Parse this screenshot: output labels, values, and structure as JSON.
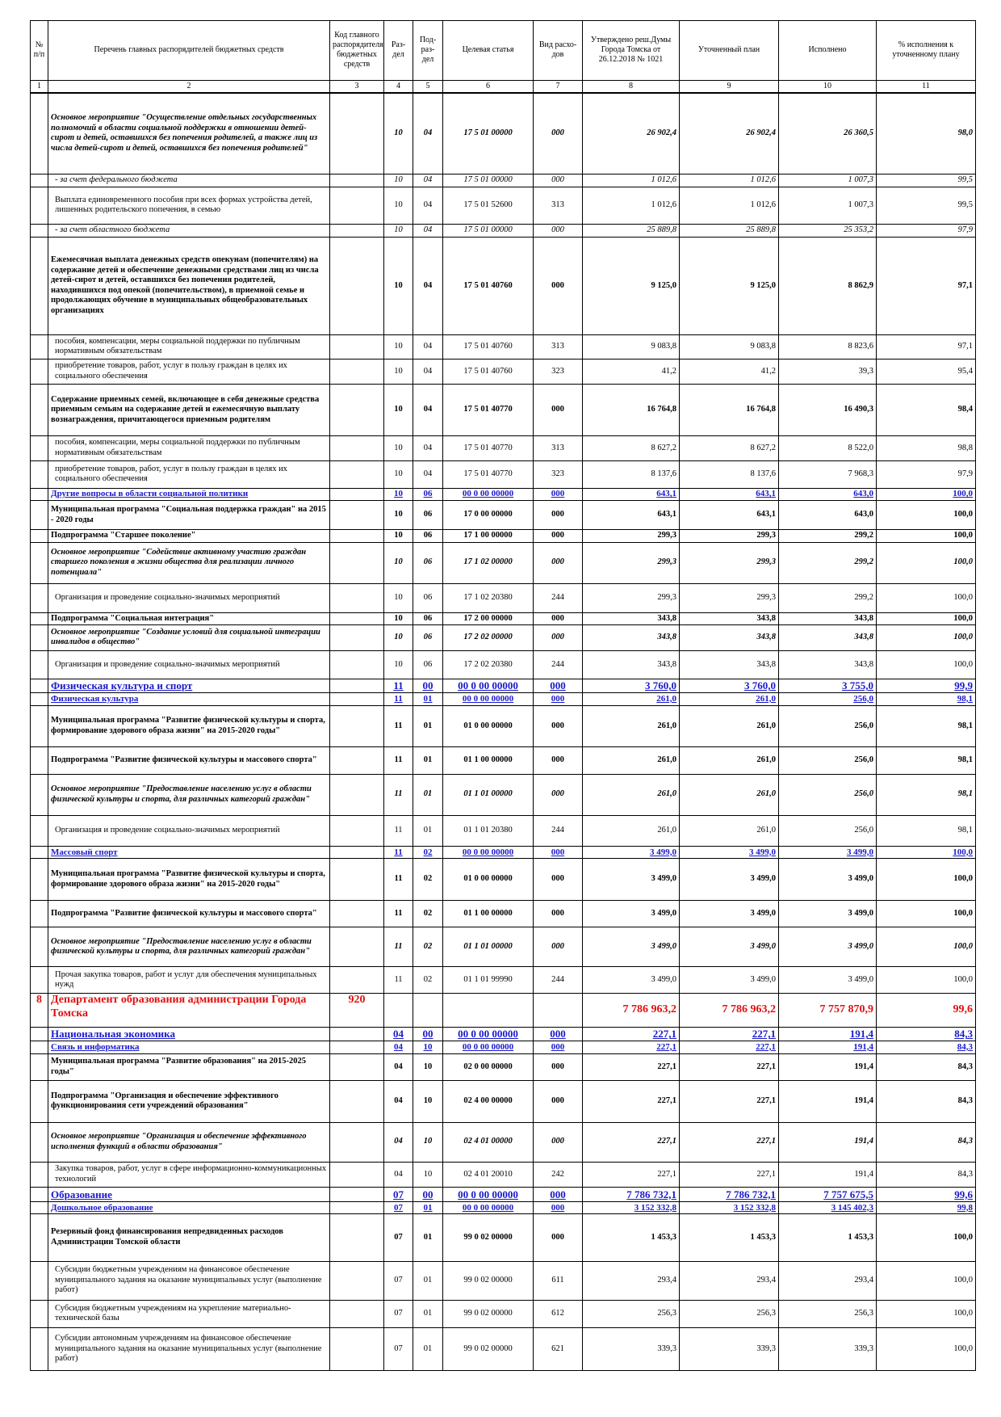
{
  "header": {
    "columns": [
      "№ п/п",
      "Перечень главных распорядителей бюджетных средств",
      "Код главного распорядителя бюджетных средств",
      "Раз-дел",
      "Под-раз-дел",
      "Целевая статья",
      "Вид расхо-дов",
      "Утверждено реш.Думы Города Томска от 26.12.2018 № 1021",
      "Уточненный план",
      "Исполнено",
      "% исполнения к уточненному плану"
    ],
    "numbers": [
      1,
      2,
      3,
      4,
      5,
      6,
      7,
      8,
      9,
      10,
      11
    ]
  },
  "rows": [
    [
      null,
      "Основное мероприятие \"Осуществление отдельных государственных полномочий в области социальной поддержки в отношении детей-сирот и детей, оставшихся без попечения родителей, а также лиц из числа детей-сирот и детей, оставшихся без попечения родителей\"",
      null,
      "10",
      "04",
      "17 5 01 00000",
      "000",
      "26 902,4",
      "26 902,4",
      "26 360,5",
      "98,0"
    ],
    [
      null,
      "- за счет федерального бюджета",
      null,
      "10",
      "04",
      "17 5 01 00000",
      "000",
      "1 012,6",
      "1 012,6",
      "1 007,3",
      "99,5"
    ],
    [
      null,
      "Выплата единовременного пособия при всех формах устройства детей, лишенных родительского попечения, в семью",
      null,
      "10",
      "04",
      "17 5 01 52600",
      "313",
      "1 012,6",
      "1 012,6",
      "1 007,3",
      "99,5"
    ],
    [
      null,
      "- за счет областного бюджета",
      null,
      "10",
      "04",
      "17 5 01 00000",
      "000",
      "25 889,8",
      "25 889,8",
      "25 353,2",
      "97,9"
    ],
    [
      null,
      "Ежемесячная выплата денежных средств опекунам (попечителям) на содержание детей и обеспечение денежными средствами лиц из числа детей-сирот и детей, оставшихся без попечения родителей, находившихся под опекой (попечительством), в приемной семье и продолжающих обучение в муниципальных общеобразовательных организациях",
      null,
      "10",
      "04",
      "17 5 01 40760",
      "000",
      "9 125,0",
      "9 125,0",
      "8 862,9",
      "97,1"
    ],
    [
      null,
      "пособия, компенсации, меры социальной поддержки по публичным нормативным обязательствам",
      null,
      "10",
      "04",
      "17 5 01 40760",
      "313",
      "9 083,8",
      "9 083,8",
      "8 823,6",
      "97,1"
    ],
    [
      null,
      "приобретение товаров, работ, услуг в пользу граждан в целях их социального обеспечения",
      null,
      "10",
      "04",
      "17 5 01 40760",
      "323",
      "41,2",
      "41,2",
      "39,3",
      "95,4"
    ],
    [
      null,
      "Содержание приемных семей, включающее в себя денежные средства приемным семьям на содержание детей и ежемесячную выплату вознаграждения, причитающегося приемным родителям",
      null,
      "10",
      "04",
      "17 5 01 40770",
      "000",
      "16 764,8",
      "16 764,8",
      "16 490,3",
      "98,4"
    ],
    [
      null,
      "пособия, компенсации, меры социальной поддержки по публичным нормативным обязательствам",
      null,
      "10",
      "04",
      "17 5 01 40770",
      "313",
      "8 627,2",
      "8 627,2",
      "8 522,0",
      "98,8"
    ],
    [
      null,
      "приобретение товаров, работ, услуг в пользу граждан в целях их социального обеспечения",
      null,
      "10",
      "04",
      "17 5 01 40770",
      "323",
      "8 137,6",
      "8 137,6",
      "7 968,3",
      "97,9"
    ],
    [
      null,
      "Другие вопросы в области социальной политики",
      null,
      "10",
      "06",
      "00 0 00 00000",
      "000",
      "643,1",
      "643,1",
      "643,0",
      "100,0"
    ],
    [
      null,
      "Муниципальная программа \"Социальная поддержка граждан\" на 2015 - 2020 годы",
      null,
      "10",
      "06",
      "17 0 00 00000",
      "000",
      "643,1",
      "643,1",
      "643,0",
      "100,0"
    ],
    [
      null,
      "Подпрограмма \"Старшее поколение\"",
      null,
      "10",
      "06",
      "17 1 00 00000",
      "000",
      "299,3",
      "299,3",
      "299,2",
      "100,0"
    ],
    [
      null,
      "Основное мероприятие \"Содействие активному участию граждан старшего поколения в жизни общества для реализации личного потенциала\"",
      null,
      "10",
      "06",
      "17 1 02 00000",
      "000",
      "299,3",
      "299,3",
      "299,2",
      "100,0"
    ],
    [
      null,
      "Организация и проведение социально-значимых мероприятий",
      null,
      "10",
      "06",
      "17 1 02 20380",
      "244",
      "299,3",
      "299,3",
      "299,2",
      "100,0"
    ],
    [
      null,
      "Подпрограмма \"Социальная интеграция\"",
      null,
      "10",
      "06",
      "17 2 00 00000",
      "000",
      "343,8",
      "343,8",
      "343,8",
      "100,0"
    ],
    [
      null,
      "Основное мероприятие \"Создание условий для социальной интеграции инвалидов в общество\"",
      null,
      "10",
      "06",
      "17 2 02 00000",
      "000",
      "343,8",
      "343,8",
      "343,8",
      "100,0"
    ],
    [
      null,
      "Организация и проведение социально-значимых мероприятий",
      null,
      "10",
      "06",
      "17 2 02 20380",
      "244",
      "343,8",
      "343,8",
      "343,8",
      "100,0"
    ],
    [
      null,
      "Физическая культура и спорт",
      null,
      "11",
      "00",
      "00 0 00 00000",
      "000",
      "3 760,0",
      "3 760,0",
      "3 755,0",
      "99,9"
    ],
    [
      null,
      "Физическая культура",
      null,
      "11",
      "01",
      "00 0 00 00000",
      "000",
      "261,0",
      "261,0",
      "256,0",
      "98,1"
    ],
    [
      null,
      "Муниципальная программа \"Развитие физической культуры и спорта, формирование здорового образа жизни\" на 2015-2020 годы\"",
      null,
      "11",
      "01",
      "01 0 00 00000",
      "000",
      "261,0",
      "261,0",
      "256,0",
      "98,1"
    ],
    [
      null,
      "Подпрограмма \"Развитие физической культуры и массового спорта\"",
      null,
      "11",
      "01",
      "01 1 00 00000",
      "000",
      "261,0",
      "261,0",
      "256,0",
      "98,1"
    ],
    [
      null,
      "Основное мероприятие \"Предоставление населению услуг в области физической культуры и спорта, для различных категорий граждан\"",
      null,
      "11",
      "01",
      "01 1 01 00000",
      "000",
      "261,0",
      "261,0",
      "256,0",
      "98,1"
    ],
    [
      null,
      "Организация и проведение социально-значимых мероприятий",
      null,
      "11",
      "01",
      "01 1 01 20380",
      "244",
      "261,0",
      "261,0",
      "256,0",
      "98,1"
    ],
    [
      null,
      "Массовый спорт",
      null,
      "11",
      "02",
      "00 0 00 00000",
      "000",
      "3 499,0",
      "3 499,0",
      "3 499,0",
      "100,0"
    ],
    [
      null,
      "Муниципальная программа \"Развитие физической культуры и спорта, формирование здорового образа жизни\" на 2015-2020 годы\"",
      null,
      "11",
      "02",
      "01 0 00 00000",
      "000",
      "3 499,0",
      "3 499,0",
      "3 499,0",
      "100,0"
    ],
    [
      null,
      "Подпрограмма \"Развитие физической культуры и массового спорта\"",
      null,
      "11",
      "02",
      "01 1 00 00000",
      "000",
      "3 499,0",
      "3 499,0",
      "3 499,0",
      "100,0"
    ],
    [
      null,
      "Основное мероприятие \"Предоставление населению услуг в области физической культуры и спорта, для различных категорий граждан\"",
      null,
      "11",
      "02",
      "01 1 01 00000",
      "000",
      "3 499,0",
      "3 499,0",
      "3 499,0",
      "100,0"
    ],
    [
      null,
      "Прочая закупка товаров, работ и услуг для обеспечения муниципальных нужд",
      null,
      "11",
      "02",
      "01 1 01 99990",
      "244",
      "3 499,0",
      "3 499,0",
      "3 499,0",
      "100,0"
    ],
    [
      "8",
      "Департамент образования администрации Города Томска",
      "920",
      null,
      null,
      null,
      null,
      "7 786 963,2",
      "7 786 963,2",
      "7 757 870,9",
      "99,6"
    ],
    [
      null,
      "Национальная экономика",
      null,
      "04",
      "00",
      "00 0 00 00000",
      "000",
      "227,1",
      "227,1",
      "191,4",
      "84,3"
    ],
    [
      null,
      "Связь и информатика",
      null,
      "04",
      "10",
      "00 0 00 00000",
      "000",
      "227,1",
      "227,1",
      "191,4",
      "84,3"
    ],
    [
      null,
      "Муниципальная программа \"Развитие образования\" на 2015-2025 годы\"",
      null,
      "04",
      "10",
      "02 0 00 00000",
      "000",
      "227,1",
      "227,1",
      "191,4",
      "84,3"
    ],
    [
      null,
      "Подпрограмма \"Организация и обеспечение эффективного функционирования сети учреждений образования\"",
      null,
      "04",
      "10",
      "02 4 00 00000",
      "000",
      "227,1",
      "227,1",
      "191,4",
      "84,3"
    ],
    [
      null,
      "Основное мероприятие \"Организация и обеспечение эффективного исполнения функций в области образования\"",
      null,
      "04",
      "10",
      "02 4 01 00000",
      "000",
      "227,1",
      "227,1",
      "191,4",
      "84,3"
    ],
    [
      null,
      "Закупка товаров, работ, услуг в сфере информационно-коммуникационных технологий",
      null,
      "04",
      "10",
      "02 4 01 20010",
      "242",
      "227,1",
      "227,1",
      "191,4",
      "84,3"
    ],
    [
      null,
      "Образование",
      null,
      "07",
      "00",
      "00 0 00 00000",
      "000",
      "7 786 732,1",
      "7 786 732,1",
      "7 757 675,5",
      "99,6"
    ],
    [
      null,
      "Дошкольное образование",
      null,
      "07",
      "01",
      "00 0 00 00000",
      "000",
      "3 152 332,8",
      "3 152 332,8",
      "3 145 402,3",
      "99,8"
    ],
    [
      null,
      "Резервный фонд финансирования непредвиденных расходов Администрации Томской области",
      null,
      "07",
      "01",
      "99 0 02 00000",
      "000",
      "1 453,3",
      "1 453,3",
      "1 453,3",
      "100,0"
    ],
    [
      null,
      "Субсидии бюджетным учреждениям на финансовое обеспечение муниципального задания на оказание муниципальных услуг (выполнение работ)",
      null,
      "07",
      "01",
      "99 0 02 00000",
      "611",
      "293,4",
      "293,4",
      "293,4",
      "100,0"
    ],
    [
      null,
      "Субсидия бюджетным учреждениям на укрепление материально-технической базы",
      null,
      "07",
      "01",
      "99 0 02 00000",
      "612",
      "256,3",
      "256,3",
      "256,3",
      "100,0"
    ],
    [
      null,
      "Субсидии автономным учреждениям на финансовое обеспечение муниципального задания на оказание муниципальных услуг (выполнение работ)",
      null,
      "07",
      "01",
      "99 0 02 00000",
      "621",
      "339,3",
      "339,3",
      "339,3",
      "100,0"
    ]
  ]
}
